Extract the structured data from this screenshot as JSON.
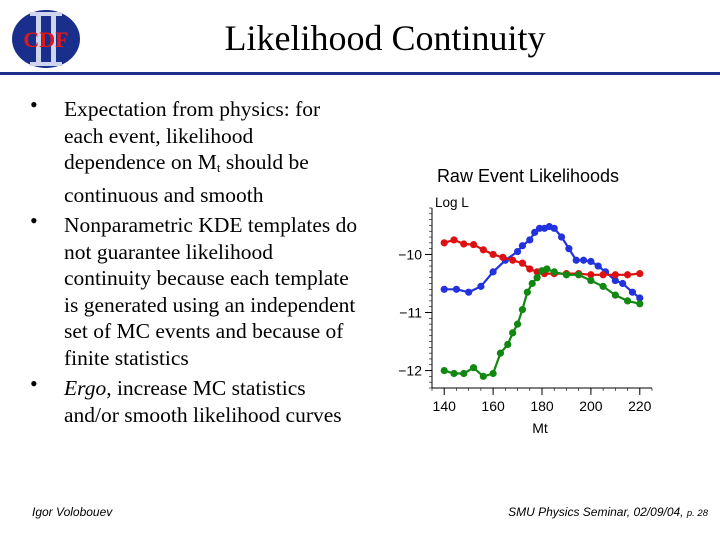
{
  "slide": {
    "title": "Likelihood Continuity",
    "logo_text": "CDF"
  },
  "bullets": [
    {
      "parts": [
        "Expectation from physics: for each event, likelihood dependence on M",
        "t",
        " should be continuous and smooth"
      ]
    },
    {
      "parts": [
        "Nonparametric KDE templates do not guarantee likelihood continuity because each template is generated using an independent set of MC events and because of finite statistics"
      ]
    },
    {
      "parts": [
        "Ergo",
        ", increase MC statistics and/or smooth likelihood curves"
      ]
    }
  ],
  "footer": {
    "author": "Igor Volobouev",
    "venue": "SMU Physics Seminar, 02/09/04,",
    "page": "p. 28"
  },
  "chart_data": {
    "type": "line",
    "title": "Raw Event Likelihoods",
    "ylabel": "Log L",
    "xlabel": "Mt",
    "xlim": [
      135,
      225
    ],
    "ylim": [
      -12.3,
      -9.2
    ],
    "xticks": [
      140,
      160,
      180,
      200,
      220
    ],
    "yticks": [
      -12,
      -11,
      -10
    ],
    "ytick_labels": [
      "−12",
      "−11",
      "−10"
    ],
    "series": [
      {
        "name": "blue",
        "color": "#2233dd",
        "points": [
          [
            140,
            -10.6
          ],
          [
            145,
            -10.6
          ],
          [
            150,
            -10.65
          ],
          [
            155,
            -10.55
          ],
          [
            160,
            -10.3
          ],
          [
            165,
            -10.1
          ],
          [
            170,
            -9.95
          ],
          [
            172,
            -9.85
          ],
          [
            175,
            -9.75
          ],
          [
            177,
            -9.62
          ],
          [
            179,
            -9.55
          ],
          [
            181,
            -9.55
          ],
          [
            183,
            -9.52
          ],
          [
            185,
            -9.55
          ],
          [
            188,
            -9.7
          ],
          [
            191,
            -9.9
          ],
          [
            194,
            -10.1
          ],
          [
            197,
            -10.1
          ],
          [
            200,
            -10.12
          ],
          [
            203,
            -10.2
          ],
          [
            206,
            -10.3
          ],
          [
            210,
            -10.45
          ],
          [
            213,
            -10.5
          ],
          [
            217,
            -10.65
          ],
          [
            220,
            -10.75
          ]
        ]
      },
      {
        "name": "red",
        "color": "#dd1111",
        "points": [
          [
            140,
            -9.8
          ],
          [
            144,
            -9.75
          ],
          [
            148,
            -9.82
          ],
          [
            152,
            -9.83
          ],
          [
            156,
            -9.92
          ],
          [
            160,
            -10.0
          ],
          [
            164,
            -10.05
          ],
          [
            168,
            -10.1
          ],
          [
            172,
            -10.15
          ],
          [
            175,
            -10.25
          ],
          [
            178,
            -10.3
          ],
          [
            181,
            -10.33
          ],
          [
            185,
            -10.33
          ],
          [
            190,
            -10.33
          ],
          [
            195,
            -10.33
          ],
          [
            200,
            -10.35
          ],
          [
            205,
            -10.35
          ],
          [
            210,
            -10.35
          ],
          [
            215,
            -10.35
          ],
          [
            220,
            -10.33
          ]
        ]
      },
      {
        "name": "green",
        "color": "#118811",
        "points": [
          [
            140,
            -12.0
          ],
          [
            144,
            -12.05
          ],
          [
            148,
            -12.05
          ],
          [
            152,
            -11.95
          ],
          [
            156,
            -12.1
          ],
          [
            160,
            -12.05
          ],
          [
            163,
            -11.7
          ],
          [
            166,
            -11.55
          ],
          [
            168,
            -11.35
          ],
          [
            170,
            -11.2
          ],
          [
            172,
            -10.95
          ],
          [
            174,
            -10.65
          ],
          [
            176,
            -10.5
          ],
          [
            178,
            -10.4
          ],
          [
            180,
            -10.28
          ],
          [
            182,
            -10.25
          ],
          [
            185,
            -10.3
          ],
          [
            190,
            -10.35
          ],
          [
            195,
            -10.35
          ],
          [
            200,
            -10.45
          ],
          [
            205,
            -10.55
          ],
          [
            210,
            -10.7
          ],
          [
            215,
            -10.8
          ],
          [
            220,
            -10.85
          ]
        ]
      }
    ]
  }
}
